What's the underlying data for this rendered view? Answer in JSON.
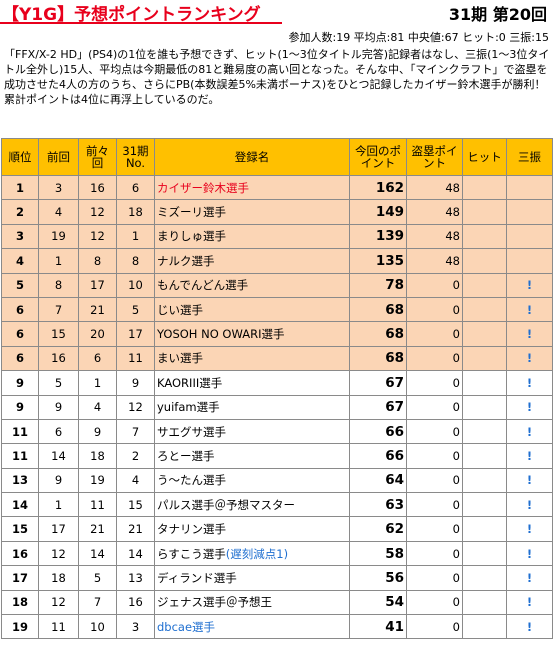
{
  "header": {
    "title": "【Y1G】予想ポイントランキング",
    "round": "31期 第20回",
    "stats": "参加人数:19 平均点:81 中央値:67 ヒット:0 三振:15"
  },
  "description": "「FFX/X-2 HD」(PS4)の1位を誰も予想できず、ヒット(1〜3位タイトル完答)記録者はなし、三振(1〜3位タイトル全外し)15人、平均点は今期最低の81と難易度の高い回となった。そんな中、「マインクラフト」で盗塁を成功させた4人の方のうち、さらにPB(本数誤差5%未満ボーナス)をひとつ記録したカイザー鈴木選手が勝利！ 累計ポイントは4位に再浮上しているのだ。",
  "table": {
    "headers": [
      "順位",
      "前回",
      "前々回",
      "31期No.",
      "登録名",
      "今回のポイント",
      "盗塁ポイント",
      "ヒット",
      "三振"
    ],
    "rows": [
      {
        "rank": "1",
        "prev": "3",
        "prev2": "16",
        "no": "6",
        "name": "カイザー鈴木選手",
        "points": "162",
        "steal": "48",
        "hit": "",
        "strikeout": "",
        "tier": "top",
        "name_color": "red"
      },
      {
        "rank": "2",
        "prev": "4",
        "prev2": "12",
        "no": "18",
        "name": "ミズーリ選手",
        "points": "149",
        "steal": "48",
        "hit": "",
        "strikeout": "",
        "tier": "top"
      },
      {
        "rank": "3",
        "prev": "19",
        "prev2": "12",
        "no": "1",
        "name": "まりしゅ選手",
        "points": "139",
        "steal": "48",
        "hit": "",
        "strikeout": "",
        "tier": "top"
      },
      {
        "rank": "4",
        "prev": "1",
        "prev2": "8",
        "no": "8",
        "name": "ナルク選手",
        "points": "135",
        "steal": "48",
        "hit": "",
        "strikeout": "",
        "tier": "top"
      },
      {
        "rank": "5",
        "prev": "8",
        "prev2": "17",
        "no": "10",
        "name": "もんでんどん選手",
        "points": "78",
        "steal": "0",
        "hit": "",
        "strikeout": "!",
        "tier": "top"
      },
      {
        "rank": "6",
        "prev": "7",
        "prev2": "21",
        "no": "5",
        "name": "じい選手",
        "points": "68",
        "steal": "0",
        "hit": "",
        "strikeout": "!",
        "tier": "top"
      },
      {
        "rank": "6",
        "prev": "15",
        "prev2": "20",
        "no": "17",
        "name": "YOSOH NO OWARI選手",
        "points": "68",
        "steal": "0",
        "hit": "",
        "strikeout": "!",
        "tier": "top"
      },
      {
        "rank": "6",
        "prev": "16",
        "prev2": "6",
        "no": "11",
        "name": "まい選手",
        "points": "68",
        "steal": "0",
        "hit": "",
        "strikeout": "!",
        "tier": "top"
      },
      {
        "rank": "9",
        "prev": "5",
        "prev2": "1",
        "no": "9",
        "name": "KAORIII選手",
        "points": "67",
        "steal": "0",
        "hit": "",
        "strikeout": "!",
        "tier": "norm"
      },
      {
        "rank": "9",
        "prev": "9",
        "prev2": "4",
        "no": "12",
        "name": "yuifam選手",
        "points": "67",
        "steal": "0",
        "hit": "",
        "strikeout": "!",
        "tier": "norm"
      },
      {
        "rank": "11",
        "prev": "6",
        "prev2": "9",
        "no": "7",
        "name": "サエグサ選手",
        "points": "66",
        "steal": "0",
        "hit": "",
        "strikeout": "!",
        "tier": "norm"
      },
      {
        "rank": "11",
        "prev": "14",
        "prev2": "18",
        "no": "2",
        "name": "ろとー選手",
        "points": "66",
        "steal": "0",
        "hit": "",
        "strikeout": "!",
        "tier": "norm"
      },
      {
        "rank": "13",
        "prev": "9",
        "prev2": "19",
        "no": "4",
        "name": "う〜たん選手",
        "points": "64",
        "steal": "0",
        "hit": "",
        "strikeout": "!",
        "tier": "norm"
      },
      {
        "rank": "14",
        "prev": "1",
        "prev2": "11",
        "no": "15",
        "name": "パルス選手＠予想マスター",
        "points": "63",
        "steal": "0",
        "hit": "",
        "strikeout": "!",
        "tier": "norm"
      },
      {
        "rank": "15",
        "prev": "17",
        "prev2": "21",
        "no": "21",
        "name": "タナリン選手",
        "points": "62",
        "steal": "0",
        "hit": "",
        "strikeout": "!",
        "tier": "norm"
      },
      {
        "rank": "16",
        "prev": "12",
        "prev2": "14",
        "no": "14",
        "name": "らすこう選手",
        "name_note": "(遅刻減点1)",
        "points": "58",
        "steal": "0",
        "hit": "",
        "strikeout": "!",
        "tier": "norm"
      },
      {
        "rank": "17",
        "prev": "18",
        "prev2": "5",
        "no": "13",
        "name": "ディランド選手",
        "points": "56",
        "steal": "0",
        "hit": "",
        "strikeout": "!",
        "tier": "norm"
      },
      {
        "rank": "18",
        "prev": "12",
        "prev2": "7",
        "no": "16",
        "name": "ジェナス選手＠予想王",
        "points": "54",
        "steal": "0",
        "hit": "",
        "strikeout": "!",
        "tier": "norm"
      },
      {
        "rank": "19",
        "prev": "11",
        "prev2": "10",
        "no": "3",
        "name": "dbcae選手",
        "points": "41",
        "steal": "0",
        "hit": "",
        "strikeout": "!",
        "tier": "norm",
        "name_color": "blue"
      }
    ]
  }
}
